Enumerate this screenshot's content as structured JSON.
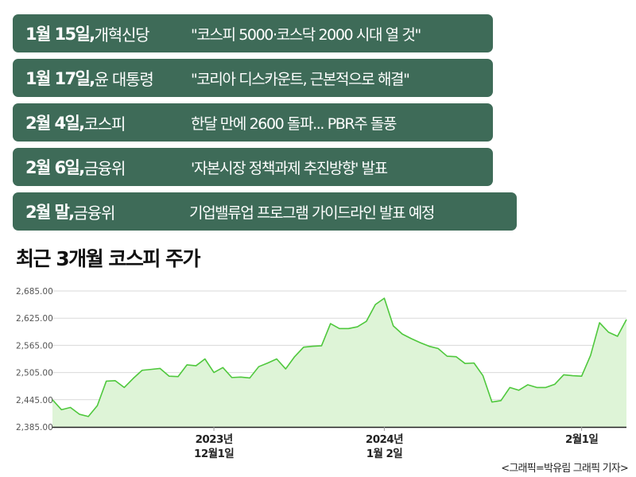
{
  "colors": {
    "pill": "#3e6b58",
    "line": "#4fc83d",
    "area": "#def4d7",
    "grid": "#d9d9d9",
    "axis": "#222222"
  },
  "timeline": [
    {
      "date": "1월 15일,",
      "org": "개혁신당",
      "headline": "\"코스피 5000·코스닥 2000 시대 열 것\""
    },
    {
      "date": "1월 17일,",
      "org": "윤 대통령",
      "headline": "\"코리아 디스카운트, 근본적으로 해결\""
    },
    {
      "date": "2월 4일,",
      "org": "코스피",
      "headline": "한달 만에 2600 돌파... PBR주 돌풍"
    },
    {
      "date": "2월 6일,",
      "org": "금융위",
      "headline": "'자본시장 정책과제 추진방향' 발표"
    },
    {
      "date": "2월 말,",
      "org": "금융위",
      "headline": "기업밸류업 프로그램 가이드라인 발표 예정"
    }
  ],
  "chart_title": {
    "bold": "최근 3개월",
    "rest": "코스피 주가"
  },
  "credit": "<그래픽=박유림 그래픽 기자>",
  "chart_data": {
    "type": "area",
    "title": "최근 3개월 코스피 주가",
    "xlabel": "",
    "ylabel": "",
    "ylim": [
      2385,
      2685
    ],
    "y_ticks": [
      "2,385.00",
      "2,445.00",
      "2,505.00",
      "2,565.00",
      "2,625.00",
      "2,685.00"
    ],
    "y_tick_values": [
      2385,
      2445,
      2505,
      2565,
      2625,
      2685
    ],
    "x_tick_labels": [
      {
        "index": 18,
        "line1": "2023년",
        "line2": "12월1일"
      },
      {
        "index": 37,
        "line1": "2024년",
        "line2": "1월 2일"
      },
      {
        "index": 59,
        "line1": "",
        "line2": "2월1일"
      }
    ],
    "grid": true,
    "series": [
      {
        "values": [
          2445,
          2423,
          2428,
          2413,
          2408,
          2432,
          2486,
          2487,
          2472,
          2492,
          2510,
          2512,
          2514,
          2497,
          2496,
          2522,
          2520,
          2535,
          2505,
          2516,
          2494,
          2495,
          2493,
          2518,
          2526,
          2535,
          2513,
          2540,
          2561,
          2563,
          2564,
          2613,
          2602,
          2602,
          2606,
          2618,
          2655,
          2669,
          2608,
          2590,
          2580,
          2571,
          2563,
          2558,
          2541,
          2540,
          2525,
          2526,
          2498,
          2440,
          2443,
          2472,
          2466,
          2478,
          2472,
          2472,
          2479,
          2500,
          2498,
          2497,
          2543,
          2615,
          2594,
          2585,
          2622
        ]
      }
    ]
  }
}
